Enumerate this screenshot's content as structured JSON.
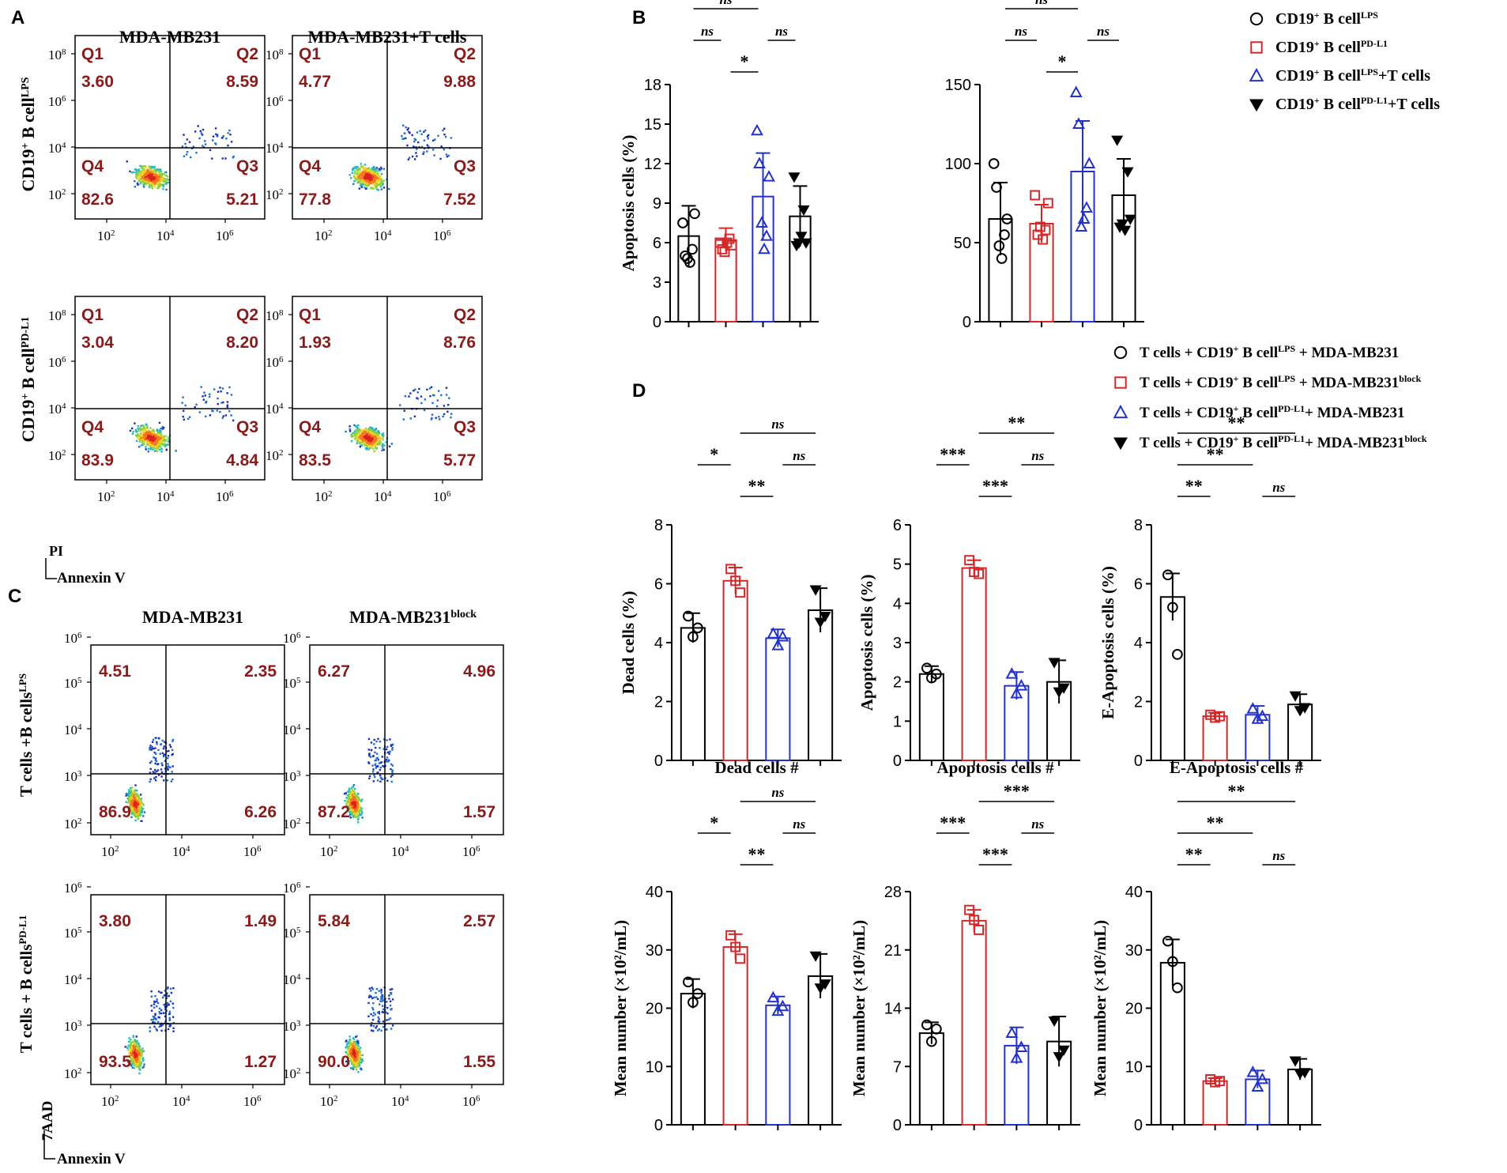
{
  "colors": {
    "black": "#000000",
    "red": "#d62728",
    "blue": "#2332c8",
    "quad_text": "#8b1a1a"
  },
  "panel_labels": {
    "A": "A",
    "B": "B",
    "C": "C",
    "D": "D"
  },
  "panel_a": {
    "col_titles": [
      "MDA-MB231",
      "MDA-MB231+T cells"
    ],
    "row_labels": [
      {
        "base": "CD19",
        "sup": "+",
        "mid": " B cell",
        "sup2": "LPS"
      },
      {
        "base": "CD19",
        "sup": "+",
        "mid": " B cell",
        "sup2": "PD-L1"
      }
    ],
    "y_axis": "PI",
    "x_axis": "Annexin V",
    "tick_labels_log": [
      "10",
      "10",
      "10",
      "10"
    ],
    "tick_exponents": [
      "2",
      "4",
      "6",
      "8"
    ],
    "x_tick_exponents": [
      "2",
      "4",
      "6"
    ],
    "plots": [
      {
        "q1": "3.60",
        "q2": "8.59",
        "q3": "5.21",
        "q4": "82.6"
      },
      {
        "q1": "4.77",
        "q2": "9.88",
        "q3": "7.52",
        "q4": "77.8"
      },
      {
        "q1": "3.04",
        "q2": "8.20",
        "q3": "4.84",
        "q4": "83.9"
      },
      {
        "q1": "1.93",
        "q2": "8.76",
        "q3": "5.77",
        "q4": "83.5"
      }
    ],
    "quad_names": {
      "q1": "Q1",
      "q2": "Q2",
      "q3": "Q3",
      "q4": "Q4"
    }
  },
  "panel_c": {
    "col_titles": [
      "MDA-MB231",
      "MDA-MB231"
    ],
    "col_title_sup": [
      "",
      "block"
    ],
    "row_labels": [
      {
        "base": "T cells +B cells",
        "sup": "LPS"
      },
      {
        "base": "T cells + B cells",
        "sup": "PD-L1"
      }
    ],
    "y_axis": "7AAD",
    "x_axis": "Annexin V",
    "plots": [
      {
        "q1": "4.51",
        "q2": "2.35",
        "q3": "6.26",
        "q4": "86.9"
      },
      {
        "q1": "6.27",
        "q2": "4.96",
        "q3": "1.57",
        "q4": "87.2"
      },
      {
        "q1": "3.80",
        "q2": "1.49",
        "q3": "1.27",
        "q4": "93.5"
      },
      {
        "q1": "5.84",
        "q2": "2.57",
        "q3": "1.55",
        "q4": "90.0"
      }
    ]
  },
  "legend_b": [
    {
      "text": "CD19",
      "sup": "+",
      "mid": " B cell",
      "sup2": "LPS",
      "tail": "",
      "marker": "circle",
      "color": "#000000"
    },
    {
      "text": "CD19",
      "sup": "+",
      "mid": " B cell",
      "sup2": "PD-L1",
      "tail": "",
      "marker": "square",
      "color": "#d62728"
    },
    {
      "text": "CD19",
      "sup": "+",
      "mid": " B cell",
      "sup2": "LPS",
      "tail": "+T cells",
      "marker": "triangle",
      "color": "#2332c8"
    },
    {
      "text": "CD19",
      "sup": "+",
      "mid": " B cell",
      "sup2": "PD-L1",
      "tail": "+T cells",
      "marker": "triangle-down",
      "color": "#000000"
    }
  ],
  "legend_d": [
    {
      "text": "T cells + CD19",
      "sup": "+",
      "mid": " B cell",
      "sup2": "LPS",
      "tail": " + MDA-MB231",
      "tail_sup": "",
      "marker": "circle",
      "color": "#000000"
    },
    {
      "text": "T cells + CD19",
      "sup": "+",
      "mid": " B cell",
      "sup2": "LPS",
      "tail": " + MDA-MB231",
      "tail_sup": "block",
      "marker": "square",
      "color": "#d62728"
    },
    {
      "text": "T cells + CD19",
      "sup": "+",
      "mid": " B cell",
      "sup2": "PD-L1",
      "tail": "+ MDA-MB231",
      "tail_sup": "",
      "marker": "triangle",
      "color": "#2332c8"
    },
    {
      "text": "T cells + CD19",
      "sup": "+",
      "mid": " B cell",
      "sup2": "PD-L1",
      "tail": "+ MDA-MB231",
      "tail_sup": "block",
      "marker": "triangle-down",
      "color": "#000000"
    }
  ],
  "chart_data": [
    {
      "id": "B1",
      "type": "bar",
      "title": "",
      "ylabel": "Apoptosis cells (%)",
      "xlabel": "",
      "ylim": [
        0,
        18
      ],
      "yticks": [
        0,
        3,
        6,
        9,
        12,
        15,
        18
      ],
      "groups": [
        "CD19+ B cell LPS",
        "CD19+ B cell PD-L1",
        "CD19+ B cell LPS+T cells",
        "CD19+ B cell PD-L1+T cells"
      ],
      "values": [
        6.5,
        6.2,
        9.5,
        8.0
      ],
      "errors": [
        2.3,
        0.9,
        3.3,
        2.3
      ],
      "points": [
        [
          7.5,
          5.0,
          4.8,
          4.5,
          5.5,
          8.2
        ],
        [
          6.0,
          5.5,
          5.3,
          6.0,
          6.3,
          5.8
        ],
        [
          14.5,
          12.0,
          7.5,
          5.5,
          6.5,
          11.0
        ],
        [
          11.0,
          5.8,
          6.0,
          6.5,
          8.5,
          6.0
        ]
      ],
      "significance": [
        {
          "from": 0,
          "to": 2,
          "label": "ns",
          "level": 2
        },
        {
          "from": 0,
          "to": 1,
          "label": "ns",
          "level": 1
        },
        {
          "from": 2,
          "to": 3,
          "label": "ns",
          "level": 1
        },
        {
          "from": 1,
          "to": 2,
          "label": "*",
          "level": 0
        }
      ]
    },
    {
      "id": "B2",
      "type": "bar",
      "title": "",
      "ylabel": "",
      "xlabel": "",
      "ylim": [
        0,
        150
      ],
      "yticks": [
        0,
        50,
        100,
        150
      ],
      "groups": [
        "CD19+ B cell LPS",
        "CD19+ B cell PD-L1",
        "CD19+ B cell LPS+T cells",
        "CD19+ B cell PD-L1+T cells"
      ],
      "values": [
        65,
        62,
        95,
        80
      ],
      "errors": [
        23,
        12,
        32,
        23
      ],
      "points": [
        [
          100,
          85,
          48,
          40,
          55,
          65
        ],
        [
          80,
          55,
          60,
          52,
          58,
          75
        ],
        [
          145,
          125,
          60,
          65,
          72,
          100
        ],
        [
          115,
          60,
          62,
          58,
          95,
          65
        ]
      ],
      "significance": [
        {
          "from": 0,
          "to": 2,
          "label": "ns",
          "level": 2
        },
        {
          "from": 0,
          "to": 1,
          "label": "ns",
          "level": 1
        },
        {
          "from": 2,
          "to": 3,
          "label": "ns",
          "level": 1
        },
        {
          "from": 1,
          "to": 2,
          "label": "*",
          "level": 0
        }
      ]
    },
    {
      "id": "D1",
      "type": "bar",
      "title": "",
      "ylabel": "Dead cells (%)",
      "xlabel": "",
      "ylim": [
        0,
        8
      ],
      "yticks": [
        0,
        2,
        4,
        6,
        8
      ],
      "values": [
        4.5,
        6.1,
        4.15,
        5.1
      ],
      "errors": [
        0.5,
        0.45,
        0.3,
        0.75
      ],
      "points": [
        [
          4.9,
          4.2,
          4.5
        ],
        [
          6.5,
          6.1,
          5.7
        ],
        [
          4.3,
          3.9,
          4.2
        ],
        [
          5.8,
          4.7,
          4.9
        ]
      ],
      "significance": [
        {
          "from": 0,
          "to": 1,
          "label": "*",
          "level": 1
        },
        {
          "from": 1,
          "to": 3,
          "label": "ns",
          "level": 2
        },
        {
          "from": 2,
          "to": 3,
          "label": "ns",
          "level": 1
        },
        {
          "from": 1,
          "to": 2,
          "label": "**",
          "level": 0
        }
      ]
    },
    {
      "id": "D2",
      "type": "bar",
      "title": "",
      "ylabel": "Apoptosis cells (%)",
      "xlabel": "",
      "ylim": [
        0,
        6
      ],
      "yticks": [
        0,
        1,
        2,
        3,
        4,
        5,
        6
      ],
      "values": [
        2.2,
        4.9,
        1.9,
        2.0
      ],
      "errors": [
        0.2,
        0.2,
        0.35,
        0.55
      ],
      "points": [
        [
          2.35,
          2.1,
          2.2
        ],
        [
          5.1,
          4.8,
          4.75
        ],
        [
          2.2,
          1.7,
          1.9
        ],
        [
          2.5,
          1.75,
          1.85
        ]
      ],
      "significance": [
        {
          "from": 0,
          "to": 1,
          "label": "***",
          "level": 1
        },
        {
          "from": 1,
          "to": 3,
          "label": "**",
          "level": 2
        },
        {
          "from": 2,
          "to": 3,
          "label": "ns",
          "level": 1
        },
        {
          "from": 1,
          "to": 2,
          "label": "***",
          "level": 0
        }
      ]
    },
    {
      "id": "D3",
      "type": "bar",
      "title": "",
      "ylabel": "E-Apoptosis cells (%)",
      "xlabel": "",
      "ylim": [
        0,
        8
      ],
      "yticks": [
        0,
        2,
        4,
        6,
        8
      ],
      "values": [
        5.55,
        1.5,
        1.55,
        1.9
      ],
      "errors": [
        0.8,
        0.12,
        0.3,
        0.35
      ],
      "points": [
        [
          6.3,
          5.2,
          3.6
        ],
        [
          1.55,
          1.45,
          1.5
        ],
        [
          1.75,
          1.4,
          1.5
        ],
        [
          2.2,
          1.7,
          1.8
        ]
      ],
      "significance": [
        {
          "from": 0,
          "to": 1,
          "label": "**",
          "level": 0
        },
        {
          "from": 0,
          "to": 2,
          "label": "**",
          "level": 1
        },
        {
          "from": 0,
          "to": 3,
          "label": "**",
          "level": 2
        },
        {
          "from": 2,
          "to": 3,
          "label": "ns",
          "level": 0
        }
      ]
    },
    {
      "id": "D4",
      "type": "bar",
      "title": "Dead cells #",
      "ylabel": "Mean number (×10²/mL)",
      "xlabel": "",
      "ylim": [
        0,
        40
      ],
      "yticks": [
        0,
        10,
        20,
        30,
        40
      ],
      "values": [
        22.5,
        30.5,
        20.5,
        25.5
      ],
      "errors": [
        2.5,
        2.2,
        1.5,
        3.8
      ],
      "points": [
        [
          24.5,
          21.0,
          22.5
        ],
        [
          32.5,
          30.5,
          28.5
        ],
        [
          21.8,
          19.5,
          20.3
        ],
        [
          29.0,
          23.5,
          24.2
        ]
      ],
      "significance": [
        {
          "from": 0,
          "to": 1,
          "label": "*",
          "level": 1
        },
        {
          "from": 1,
          "to": 3,
          "label": "ns",
          "level": 2
        },
        {
          "from": 2,
          "to": 3,
          "label": "ns",
          "level": 1
        },
        {
          "from": 1,
          "to": 2,
          "label": "**",
          "level": 0
        }
      ]
    },
    {
      "id": "D5",
      "type": "bar",
      "title": "Apoptosis cells #",
      "ylabel": "Mean number (×10²/mL)",
      "xlabel": "",
      "ylim": [
        0,
        28
      ],
      "yticks": [
        0,
        7,
        14,
        21,
        28
      ],
      "values": [
        11.0,
        24.5,
        9.5,
        10.0
      ],
      "errors": [
        1.3,
        1.3,
        2.2,
        3.0
      ],
      "points": [
        [
          12.0,
          10.0,
          11.5
        ],
        [
          25.8,
          24.6,
          23.4
        ],
        [
          11.0,
          8.0,
          9.3
        ],
        [
          12.5,
          8.2,
          9.0
        ]
      ],
      "significance": [
        {
          "from": 0,
          "to": 1,
          "label": "***",
          "level": 1
        },
        {
          "from": 1,
          "to": 3,
          "label": "***",
          "level": 2
        },
        {
          "from": 2,
          "to": 3,
          "label": "ns",
          "level": 1
        },
        {
          "from": 1,
          "to": 2,
          "label": "***",
          "level": 0
        }
      ]
    },
    {
      "id": "D6",
      "type": "bar",
      "title": "E-Apoptosis cells #",
      "ylabel": "Mean number (×10²/mL)",
      "xlabel": "",
      "ylim": [
        0,
        40
      ],
      "yticks": [
        0,
        10,
        20,
        30,
        40
      ],
      "values": [
        27.8,
        7.5,
        7.8,
        9.5
      ],
      "errors": [
        4.0,
        0.5,
        1.5,
        1.8
      ],
      "points": [
        [
          31.5,
          28.0,
          23.5
        ],
        [
          7.8,
          7.3,
          7.5
        ],
        [
          9.0,
          6.5,
          7.8
        ],
        [
          11.0,
          8.8,
          9.0
        ]
      ],
      "significance": [
        {
          "from": 0,
          "to": 1,
          "label": "**",
          "level": 0
        },
        {
          "from": 0,
          "to": 2,
          "label": "**",
          "level": 1
        },
        {
          "from": 0,
          "to": 3,
          "label": "**",
          "level": 2
        },
        {
          "from": 2,
          "to": 3,
          "label": "ns",
          "level": 0
        }
      ]
    }
  ]
}
